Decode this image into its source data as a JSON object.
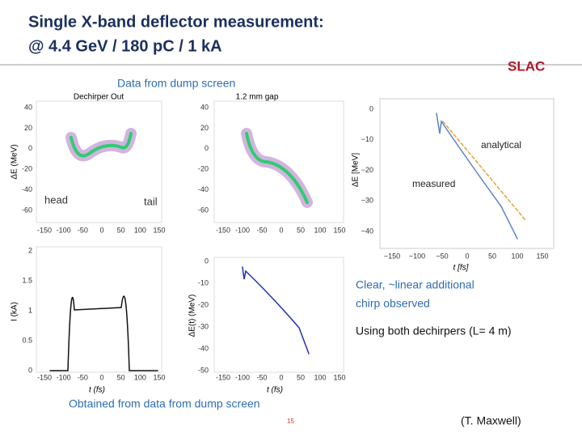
{
  "header": {
    "title": [
      "Single X-band deflector measurement:",
      "@ 4.4 GeV / 180 pC / 1 kA"
    ],
    "logo": "SLAC"
  },
  "annotations": {
    "data_source": "Data from dump screen",
    "analytical": "analytical",
    "measured": "measured",
    "head": "head",
    "tail": "tail",
    "conclusion": [
      "Clear, ~linear  additional",
      "chirp observed"
    ],
    "setup": "Using both dechirpers (L= 4 m)",
    "footnote": "Obtained from data from dump screen",
    "page": "15",
    "credit": "(T. Maxwell)"
  },
  "panels": [
    {
      "title": "Dechirper Out",
      "ylabel": "ΔE (MeV)",
      "yticks": [
        "40",
        "20",
        "0",
        "-20",
        "-40",
        "-60"
      ],
      "xticks": [
        "-150",
        "-100",
        "-50",
        "0",
        "50",
        "100",
        "150"
      ]
    },
    {
      "title": "1.2 mm gap",
      "yticks": [
        "40",
        "20",
        "0",
        "-20",
        "-40",
        "-60"
      ],
      "xticks": [
        "-150",
        "-100",
        "-50",
        "0",
        "50",
        "100",
        "150"
      ]
    },
    {
      "ylabel": "ΔE [MeV]",
      "xlabel": "t [fs]",
      "yticks": [
        "0",
        "−10",
        "−20",
        "−30",
        "−40"
      ],
      "xticks": [
        "−150",
        "−100",
        "−50",
        "0",
        "50",
        "100",
        "150"
      ]
    },
    {
      "ylabel": "I (kA)",
      "xlabel": "t (fs)",
      "yticks": [
        "2",
        "1.5",
        "1",
        "0.5",
        "0"
      ],
      "xticks": [
        "-150",
        "-100",
        "-50",
        "0",
        "50",
        "100",
        "150"
      ]
    },
    {
      "ylabel": "ΔE(t) (MeV)",
      "xlabel": "t (fs)",
      "yticks": [
        "0",
        "-10",
        "-20",
        "-30",
        "-40",
        "-50"
      ],
      "xticks": [
        "-150",
        "-100",
        "-50",
        "0",
        "50",
        "100",
        "150"
      ]
    }
  ]
}
